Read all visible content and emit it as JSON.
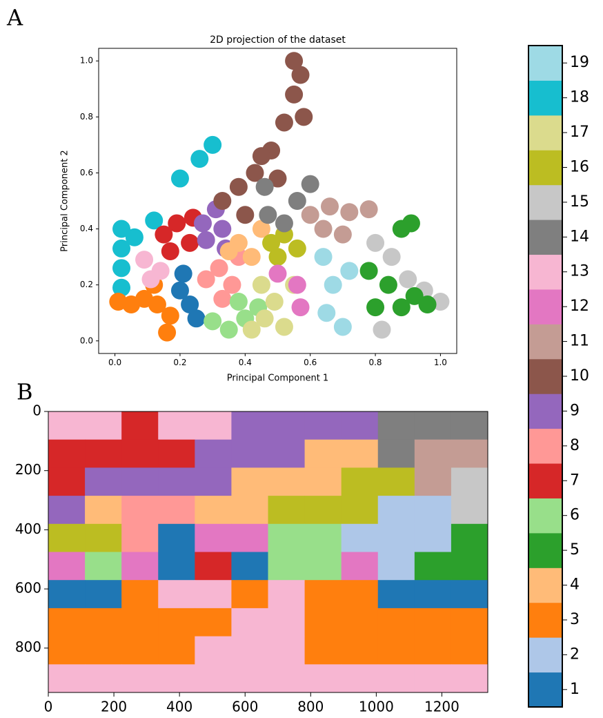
{
  "chart_data": [
    {
      "type": "scatter",
      "panel_label": "A",
      "title": "2D projection of the dataset",
      "x_label": "Principal Component 1",
      "y_label": "Principal Component 2",
      "xlim": [
        -0.05,
        1.05
      ],
      "ylim": [
        -0.045,
        1.045
      ],
      "xticks": [
        {
          "value": 0,
          "label": "0.0"
        },
        {
          "value": 0.2,
          "label": "0.2"
        },
        {
          "value": 0.4,
          "label": "0.4"
        },
        {
          "value": 0.6,
          "label": "0.6"
        },
        {
          "value": 0.8,
          "label": "0.8"
        },
        {
          "value": 1,
          "label": "1.0"
        }
      ],
      "yticks": [
        {
          "value": 0,
          "label": "0.0"
        },
        {
          "value": 0.2,
          "label": "0.2"
        },
        {
          "value": 0.4,
          "label": "0.4"
        },
        {
          "value": 0.6,
          "label": "0.6"
        },
        {
          "value": 0.8,
          "label": "0.8"
        },
        {
          "value": 1,
          "label": "1.0"
        }
      ],
      "series": [
        {
          "color": "#17becf",
          "x": [
            0.02,
            0.02,
            0.02,
            0.02,
            0.06,
            0.12,
            0.2,
            0.26,
            0.3
          ],
          "y": [
            0.4,
            0.33,
            0.26,
            0.19,
            0.37,
            0.43,
            0.58,
            0.65,
            0.7
          ]
        },
        {
          "color": "#ff7f0e",
          "x": [
            0.01,
            0.05,
            0.09,
            0.13,
            0.17,
            0.12,
            0.16
          ],
          "y": [
            0.14,
            0.13,
            0.15,
            0.13,
            0.09,
            0.2,
            0.03
          ]
        },
        {
          "color": "#f7b6d2",
          "x": [
            0.11,
            0.14,
            0.09
          ],
          "y": [
            0.22,
            0.25,
            0.29
          ]
        },
        {
          "color": "#1f77b4",
          "x": [
            0.2,
            0.23,
            0.21,
            0.25
          ],
          "y": [
            0.18,
            0.13,
            0.24,
            0.08
          ]
        },
        {
          "color": "#d62728",
          "x": [
            0.15,
            0.19,
            0.23,
            0.17,
            0.24
          ],
          "y": [
            0.38,
            0.42,
            0.35,
            0.32,
            0.44
          ]
        },
        {
          "color": "#9467bd",
          "x": [
            0.27,
            0.31,
            0.28,
            0.34,
            0.33
          ],
          "y": [
            0.42,
            0.47,
            0.36,
            0.33,
            0.4
          ]
        },
        {
          "color": "#ff9896",
          "x": [
            0.28,
            0.32,
            0.36,
            0.33,
            0.38
          ],
          "y": [
            0.22,
            0.26,
            0.2,
            0.15,
            0.3
          ]
        },
        {
          "color": "#98df8a",
          "x": [
            0.3,
            0.35,
            0.4,
            0.44,
            0.38
          ],
          "y": [
            0.07,
            0.04,
            0.08,
            0.12,
            0.14
          ]
        },
        {
          "color": "#ffbb78",
          "x": [
            0.38,
            0.42,
            0.45,
            0.35
          ],
          "y": [
            0.35,
            0.3,
            0.4,
            0.32
          ]
        },
        {
          "color": "#dbdb8d",
          "x": [
            0.45,
            0.49,
            0.52,
            0.46,
            0.55,
            0.42
          ],
          "y": [
            0.2,
            0.14,
            0.05,
            0.08,
            0.2,
            0.04
          ]
        },
        {
          "color": "#bcbd22",
          "x": [
            0.48,
            0.52,
            0.56,
            0.5
          ],
          "y": [
            0.35,
            0.38,
            0.33,
            0.3
          ]
        },
        {
          "color": "#e377c2",
          "x": [
            0.56,
            0.57,
            0.5
          ],
          "y": [
            0.2,
            0.12,
            0.24
          ]
        },
        {
          "color": "#8c564b",
          "x": [
            0.33,
            0.38,
            0.43,
            0.48,
            0.52,
            0.55,
            0.57,
            0.55,
            0.4,
            0.5,
            0.58,
            0.45
          ],
          "y": [
            0.5,
            0.55,
            0.6,
            0.68,
            0.78,
            0.88,
            0.95,
            1.0,
            0.45,
            0.58,
            0.8,
            0.66
          ]
        },
        {
          "color": "#7f7f7f",
          "x": [
            0.47,
            0.52,
            0.56,
            0.6,
            0.46
          ],
          "y": [
            0.45,
            0.42,
            0.5,
            0.56,
            0.55
          ]
        },
        {
          "color": "#c49c94",
          "x": [
            0.6,
            0.66,
            0.72,
            0.78,
            0.7,
            0.64
          ],
          "y": [
            0.45,
            0.48,
            0.46,
            0.47,
            0.38,
            0.4
          ]
        },
        {
          "color": "#9edae5",
          "x": [
            0.64,
            0.67,
            0.65,
            0.7,
            0.72
          ],
          "y": [
            0.3,
            0.2,
            0.1,
            0.05,
            0.25
          ]
        },
        {
          "color": "#c7c7c7",
          "x": [
            0.8,
            0.85,
            0.9,
            0.95,
            1.0,
            0.82
          ],
          "y": [
            0.35,
            0.3,
            0.22,
            0.18,
            0.14,
            0.04
          ]
        },
        {
          "color": "#2ca02c",
          "x": [
            0.78,
            0.84,
            0.88,
            0.92,
            0.8,
            0.96,
            0.88,
            0.91
          ],
          "y": [
            0.25,
            0.2,
            0.12,
            0.16,
            0.12,
            0.13,
            0.4,
            0.42
          ]
        }
      ]
    },
    {
      "type": "heatmap",
      "panel_label": "B",
      "xlim": [
        0,
        1340
      ],
      "ylim": [
        950,
        0
      ],
      "xticks": [
        0,
        200,
        400,
        600,
        800,
        1000,
        1200
      ],
      "yticks": [
        0,
        200,
        400,
        600,
        800
      ],
      "grid": [
        [
          13,
          13,
          7,
          13,
          13,
          9,
          9,
          9,
          9,
          14,
          14,
          14
        ],
        [
          7,
          7,
          7,
          7,
          9,
          9,
          9,
          4,
          4,
          14,
          11,
          11
        ],
        [
          7,
          9,
          9,
          9,
          9,
          4,
          4,
          4,
          16,
          16,
          11,
          15
        ],
        [
          9,
          4,
          8,
          8,
          4,
          4,
          16,
          16,
          16,
          2,
          2,
          15
        ],
        [
          16,
          16,
          8,
          1,
          12,
          12,
          6,
          6,
          2,
          2,
          2,
          5
        ],
        [
          12,
          6,
          12,
          1,
          7,
          1,
          6,
          6,
          12,
          2,
          5,
          5
        ],
        [
          1,
          1,
          3,
          13,
          13,
          3,
          13,
          3,
          3,
          1,
          1,
          1
        ],
        [
          3,
          3,
          3,
          3,
          3,
          13,
          13,
          3,
          3,
          3,
          3,
          3
        ],
        [
          3,
          3,
          3,
          3,
          13,
          13,
          13,
          3,
          3,
          3,
          3,
          3
        ],
        [
          13,
          13,
          13,
          13,
          13,
          13,
          13,
          13,
          13,
          13,
          13,
          13
        ]
      ]
    },
    {
      "type": "colorbar",
      "clim": [
        0.5,
        19.5
      ],
      "ticks": [
        1,
        2,
        3,
        4,
        5,
        6,
        7,
        8,
        9,
        10,
        11,
        12,
        13,
        14,
        15,
        16,
        17,
        18,
        19
      ],
      "colors": [
        "#1f77b4",
        "#aec7e8",
        "#ff7f0e",
        "#ffbb78",
        "#2ca02c",
        "#98df8a",
        "#d62728",
        "#ff9896",
        "#9467bd",
        "#8c564b",
        "#c49c94",
        "#e377c2",
        "#f7b6d2",
        "#7f7f7f",
        "#c7c7c7",
        "#bcbd22",
        "#dbdb8d",
        "#17becf",
        "#9edae5"
      ]
    }
  ]
}
